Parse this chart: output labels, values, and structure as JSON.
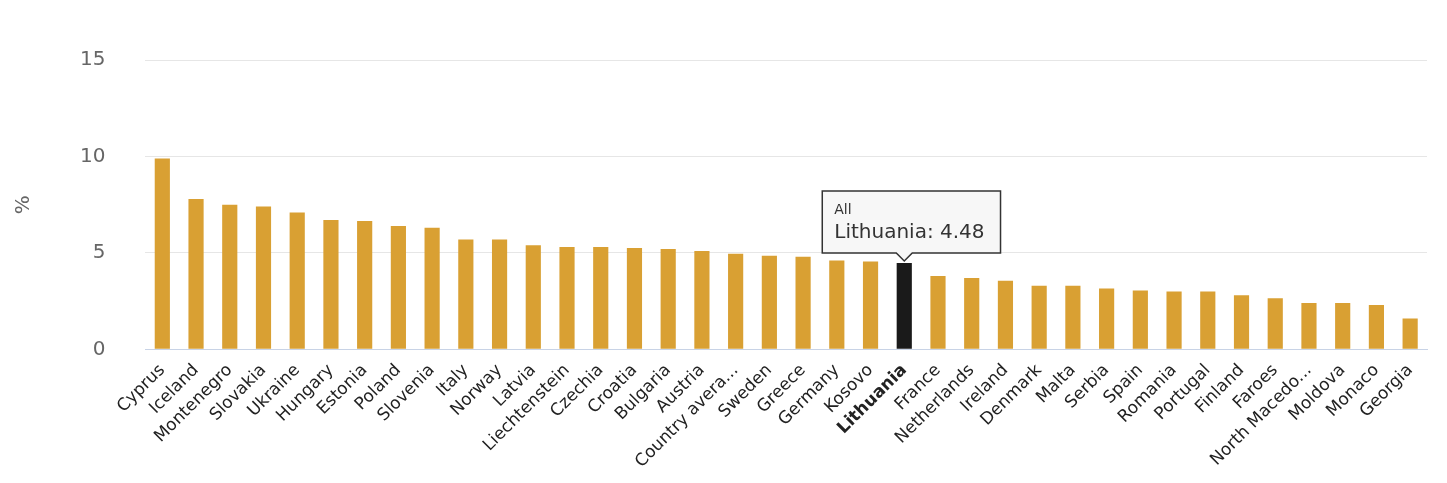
{
  "chart_data": {
    "type": "bar",
    "ylabel": "%",
    "categories": [
      "Cyprus",
      "Iceland",
      "Montenegro",
      "Slovakia",
      "Ukraine",
      "Hungary",
      "Estonia",
      "Poland",
      "Slovenia",
      "Italy",
      "Norway",
      "Latvia",
      "Liechtenstein",
      "Czechia",
      "Croatia",
      "Bulgaria",
      "Austria",
      "Country avera...",
      "Sweden",
      "Greece",
      "Germany",
      "Kosovo",
      "Lithuania",
      "France",
      "Netherlands",
      "Ireland",
      "Denmark",
      "Malta",
      "Serbia",
      "Spain",
      "Romania",
      "Portugal",
      "Finland",
      "Faroes",
      "North Macedo...",
      "Moldova",
      "Monaco",
      "Georgia"
    ],
    "values": [
      9.9,
      7.8,
      7.5,
      7.4,
      7.1,
      6.7,
      6.65,
      6.4,
      6.3,
      5.7,
      5.7,
      5.4,
      5.3,
      5.3,
      5.25,
      5.2,
      5.1,
      4.95,
      4.85,
      4.8,
      4.6,
      4.55,
      4.48,
      3.8,
      3.7,
      3.55,
      3.3,
      3.3,
      3.15,
      3.05,
      3.0,
      3.0,
      2.8,
      2.65,
      2.4,
      2.4,
      2.3,
      1.6
    ],
    "colors": [
      "#d9a033",
      "#d9a033",
      "#d9a033",
      "#d9a033",
      "#d9a033",
      "#d9a033",
      "#d9a033",
      "#d9a033",
      "#d9a033",
      "#d9a033",
      "#d9a033",
      "#d9a033",
      "#d9a033",
      "#d9a033",
      "#d9a033",
      "#d9a033",
      "#d9a033",
      "#d9a033",
      "#d9a033",
      "#d9a033",
      "#d9a033",
      "#d9a033",
      "#1a1a1a",
      "#d9a033",
      "#d9a033",
      "#d9a033",
      "#d9a033",
      "#d9a033",
      "#d9a033",
      "#d9a033",
      "#d9a033",
      "#d9a033",
      "#d9a033",
      "#d9a033",
      "#d9a033",
      "#d9a033",
      "#d9a033",
      "#d9a033"
    ],
    "ylim": [
      0,
      15
    ],
    "yticks": [
      0,
      5,
      10,
      15
    ],
    "grid": "y",
    "legend": false,
    "annotations": [
      "All",
      "Lithuania: 4.48"
    ]
  }
}
